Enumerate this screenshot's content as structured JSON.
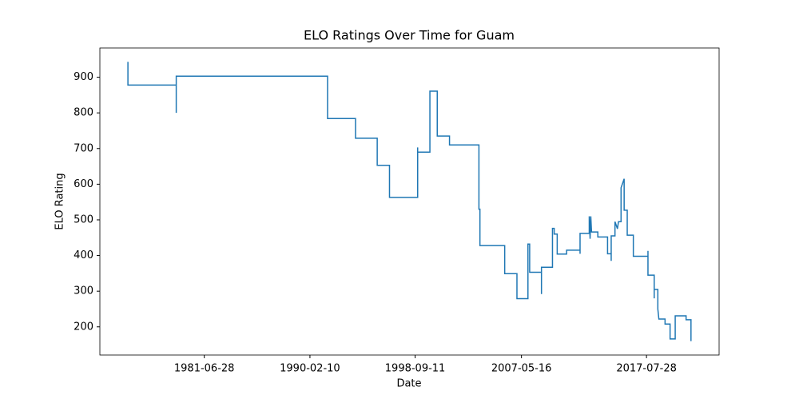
{
  "chart_data": {
    "type": "line",
    "title": "ELO Ratings Over Time for Guam",
    "x_label": "Date",
    "y_label": "ELO Rating",
    "x": [
      "1975-04-05",
      "1975-04-05",
      "1979-03-15",
      "1979-03-15",
      "1979-03-15",
      "1991-07-20",
      "1991-07-20",
      "1993-10-30",
      "1993-10-30",
      "1995-08-08",
      "1995-08-08",
      "1996-08-08",
      "1996-08-08",
      "1998-11-25",
      "1998-11-25",
      "1998-11-25",
      "1999-11-25",
      "1999-11-25",
      "2000-07-01",
      "2000-07-01",
      "2001-07-01",
      "2001-07-01",
      "2003-11-25",
      "2003-11-25",
      "2003-12-25",
      "2003-12-25",
      "2006-01-01",
      "2006-01-01",
      "2007-01-01",
      "2007-01-01",
      "2007-11-25",
      "2007-11-25",
      "2008-01-15",
      "2008-01-15",
      "2009-01-01",
      "2009-01-01",
      "2009-01-01",
      "2009-11-25",
      "2009-11-25",
      "2010-01-15",
      "2010-01-15",
      "2010-04-15",
      "2010-04-15",
      "2011-01-20",
      "2011-01-20",
      "2012-02-25",
      "2012-02-25",
      "2012-02-25",
      "2012-11-25",
      "2012-11-25",
      "2012-12-20",
      "2013-01-10",
      "2013-02-01",
      "2013-08-08",
      "2013-08-08",
      "2014-05-25",
      "2014-05-25",
      "2014-09-10",
      "2014-09-10",
      "2014-09-10",
      "2015-01-01",
      "2015-01-01",
      "2015-03-15",
      "2015-04-15",
      "2015-07-01",
      "2015-07-01",
      "2015-10-01",
      "2015-10-01",
      "2016-01-01",
      "2016-01-01",
      "2016-07-01",
      "2016-07-01",
      "2017-09-10",
      "2017-09-10",
      "2017-09-10",
      "2018-03-15",
      "2018-03-15",
      "2018-03-15",
      "2018-07-01",
      "2018-07-01",
      "2018-08-01",
      "2019-02-01",
      "2019-02-01",
      "2019-07-01",
      "2019-07-01",
      "2019-12-01",
      "2019-12-01",
      "2020-10-20",
      "2020-10-20",
      "2021-03-15",
      "2021-03-15"
    ],
    "series": [
      {
        "name": "ELO Rating",
        "color": "#1f77b4",
        "values": [
          943,
          878,
          878,
          800,
          903,
          903,
          784,
          784,
          729,
          729,
          653,
          653,
          563,
          563,
          703,
          690,
          690,
          861,
          861,
          735,
          735,
          710,
          710,
          530,
          530,
          428,
          428,
          349,
          349,
          279,
          279,
          432,
          432,
          353,
          353,
          292,
          367,
          367,
          476,
          476,
          460,
          460,
          404,
          404,
          415,
          415,
          405,
          462,
          462,
          510,
          447,
          510,
          466,
          466,
          452,
          452,
          405,
          405,
          385,
          455,
          455,
          495,
          475,
          495,
          495,
          590,
          615,
          527,
          527,
          457,
          457,
          398,
          398,
          413,
          345,
          345,
          280,
          305,
          305,
          250,
          222,
          222,
          208,
          208,
          166,
          166,
          231,
          231,
          220,
          220,
          160
        ]
      }
    ],
    "xlim": [
      "1972-12-20",
      "2023-07-01"
    ],
    "xticks": [
      "1981-06-28",
      "1990-02-10",
      "1998-09-11",
      "2007-05-16",
      "2017-07-28"
    ],
    "ylim": [
      121,
      982
    ],
    "yticks": [
      200,
      300,
      400,
      500,
      600,
      700,
      800,
      900
    ]
  }
}
